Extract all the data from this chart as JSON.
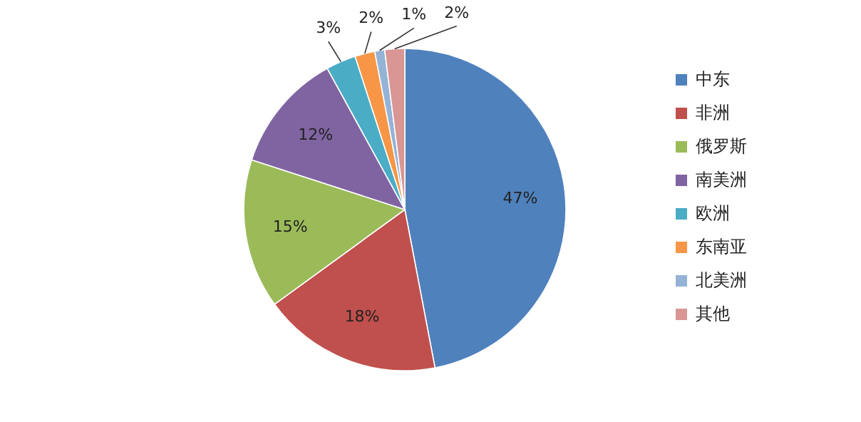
{
  "chart_data": {
    "type": "pie",
    "categories": [
      "中东",
      "非洲",
      "俄罗斯",
      "南美洲",
      "欧洲",
      "东南亚",
      "北美洲",
      "其他"
    ],
    "values": [
      47,
      18,
      15,
      12,
      3,
      2,
      1,
      2
    ],
    "value_labels": [
      "47%",
      "18%",
      "15%",
      "12%",
      "3%",
      "2%",
      "1%",
      "2%"
    ],
    "colors": [
      "#4f81bd",
      "#c0504d",
      "#9bbb59",
      "#8064a2",
      "#4bacc6",
      "#f79646",
      "#95b3d7",
      "#d99694"
    ],
    "legend": "right"
  }
}
